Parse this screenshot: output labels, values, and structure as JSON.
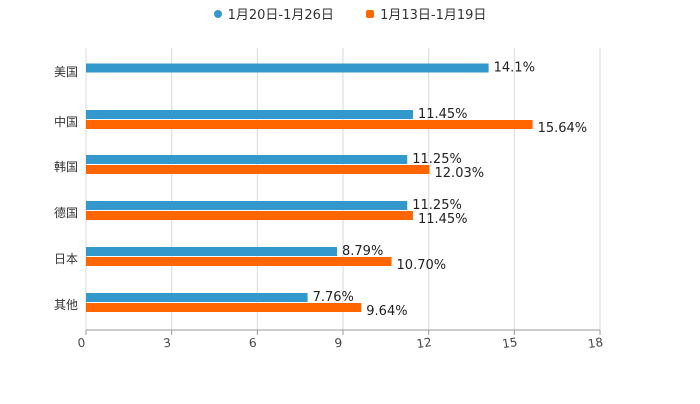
{
  "chart_data": {
    "type": "bar",
    "orientation": "horizontal",
    "title": "",
    "xlabel": "",
    "ylabel": "",
    "categories": [
      "美国",
      "中国",
      "韩国",
      "德国",
      "日本",
      "其他"
    ],
    "series": [
      {
        "name": "1月20日-1月26日",
        "color": "#3399cc",
        "values": [
          14.1,
          11.45,
          11.25,
          11.25,
          8.79,
          7.76
        ],
        "labels": [
          "14.1%",
          "11.45%",
          "11.25%",
          "11.25%",
          "8.79%",
          "7.76%"
        ]
      },
      {
        "name": "1月13日-1月19日",
        "color": "#ff6600",
        "values": [
          null,
          15.64,
          12.03,
          11.45,
          10.7,
          9.64
        ],
        "labels": [
          "",
          "15.64%",
          "12.03%",
          "11.45%",
          "10.70%",
          "9.64%"
        ]
      }
    ],
    "xlim": [
      0,
      18
    ],
    "xticks": [
      0,
      3,
      6,
      9,
      12,
      15,
      18
    ],
    "xtick_labels": [
      "0",
      "3",
      "6",
      "9",
      "12",
      "15",
      "18"
    ],
    "grid": true,
    "legend_position": "top-center"
  }
}
